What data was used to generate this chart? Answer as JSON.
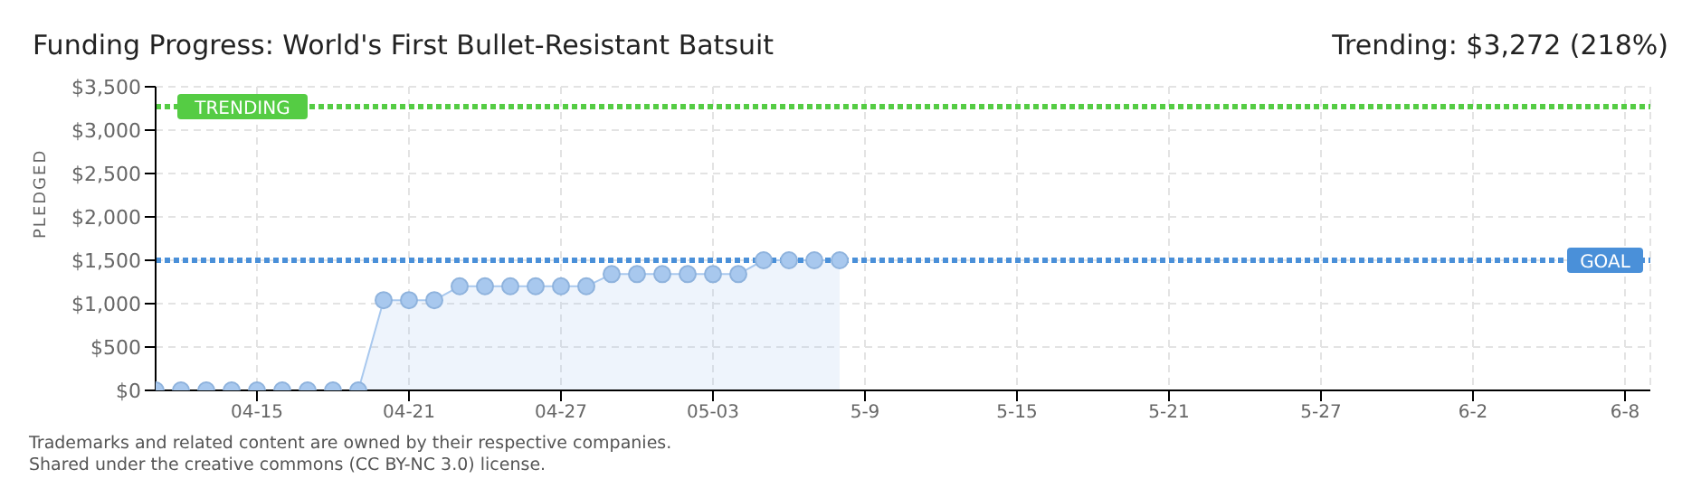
{
  "chart_data": {
    "type": "area",
    "title": "Funding Progress: World's First Bullet-Resistant Batsuit",
    "ylabel": "PLEDGED",
    "annotations": [
      "Trending: $3,272 (218%)",
      "Trademarks and related content are owned by their respective companies.",
      "Shared under the creative commons (CC BY-NC 3.0) license."
    ],
    "x": [
      "--04-11",
      "--04-12",
      "--04-13",
      "--04-14",
      "--04-15",
      "--04-16",
      "--04-17",
      "--04-18",
      "--04-19",
      "--04-20",
      "--04-21",
      "--04-22",
      "--04-23",
      "--04-24",
      "--04-25",
      "--04-26",
      "--04-27",
      "--04-28",
      "--04-29",
      "--04-30",
      "--05-01",
      "--05-02",
      "--05-03",
      "--05-04",
      "--05-05",
      "--05-06",
      "--05-07",
      "--05-08"
    ],
    "series": [
      {
        "color": "#a8c8ee",
        "values": [
          0,
          0,
          0,
          0,
          0,
          0,
          0,
          0,
          0,
          1040,
          1040,
          1040,
          1200,
          1200,
          1200,
          1200,
          1200,
          1200,
          1340,
          1340,
          1340,
          1340,
          1340,
          1340,
          1500,
          1500,
          1500,
          1500
        ]
      }
    ],
    "xlim": [
      "--04-11",
      "--06-09"
    ],
    "xticks": [
      {
        "value": "--04-15",
        "label": "04-15"
      },
      {
        "value": "--04-21",
        "label": "04-21"
      },
      {
        "value": "--04-27",
        "label": "04-27"
      },
      {
        "value": "--05-03",
        "label": "05-03"
      },
      {
        "value": "--05-09",
        "label": "5-9"
      },
      {
        "value": "--05-15",
        "label": "5-15"
      },
      {
        "value": "--05-21",
        "label": "5-21"
      },
      {
        "value": "--05-27",
        "label": "5-27"
      },
      {
        "value": "--06-02",
        "label": "6-2"
      },
      {
        "value": "--06-08",
        "label": "6-8"
      }
    ],
    "ylim": [
      0,
      3500
    ],
    "yticks": [
      {
        "value": 0,
        "label": "$0"
      },
      {
        "value": 500,
        "label": "$500"
      },
      {
        "value": 1000,
        "label": "$1,000"
      },
      {
        "value": 1500,
        "label": "$1,500"
      },
      {
        "value": 2000,
        "label": "$2,000"
      },
      {
        "value": 2500,
        "label": "$2,500"
      },
      {
        "value": 3000,
        "label": "$3,000"
      },
      {
        "value": 3500,
        "label": "$3,500"
      }
    ],
    "ref_lines": [
      {
        "axis": "y",
        "value": 3272,
        "label": "TRENDING",
        "color": "#55cc44",
        "line_style": "dotted"
      },
      {
        "axis": "y",
        "value": 1500,
        "label": "GOAL",
        "color": "#4a90d9",
        "line_style": "dotted"
      }
    ],
    "grid": true,
    "marker": "circle",
    "legend": false
  }
}
